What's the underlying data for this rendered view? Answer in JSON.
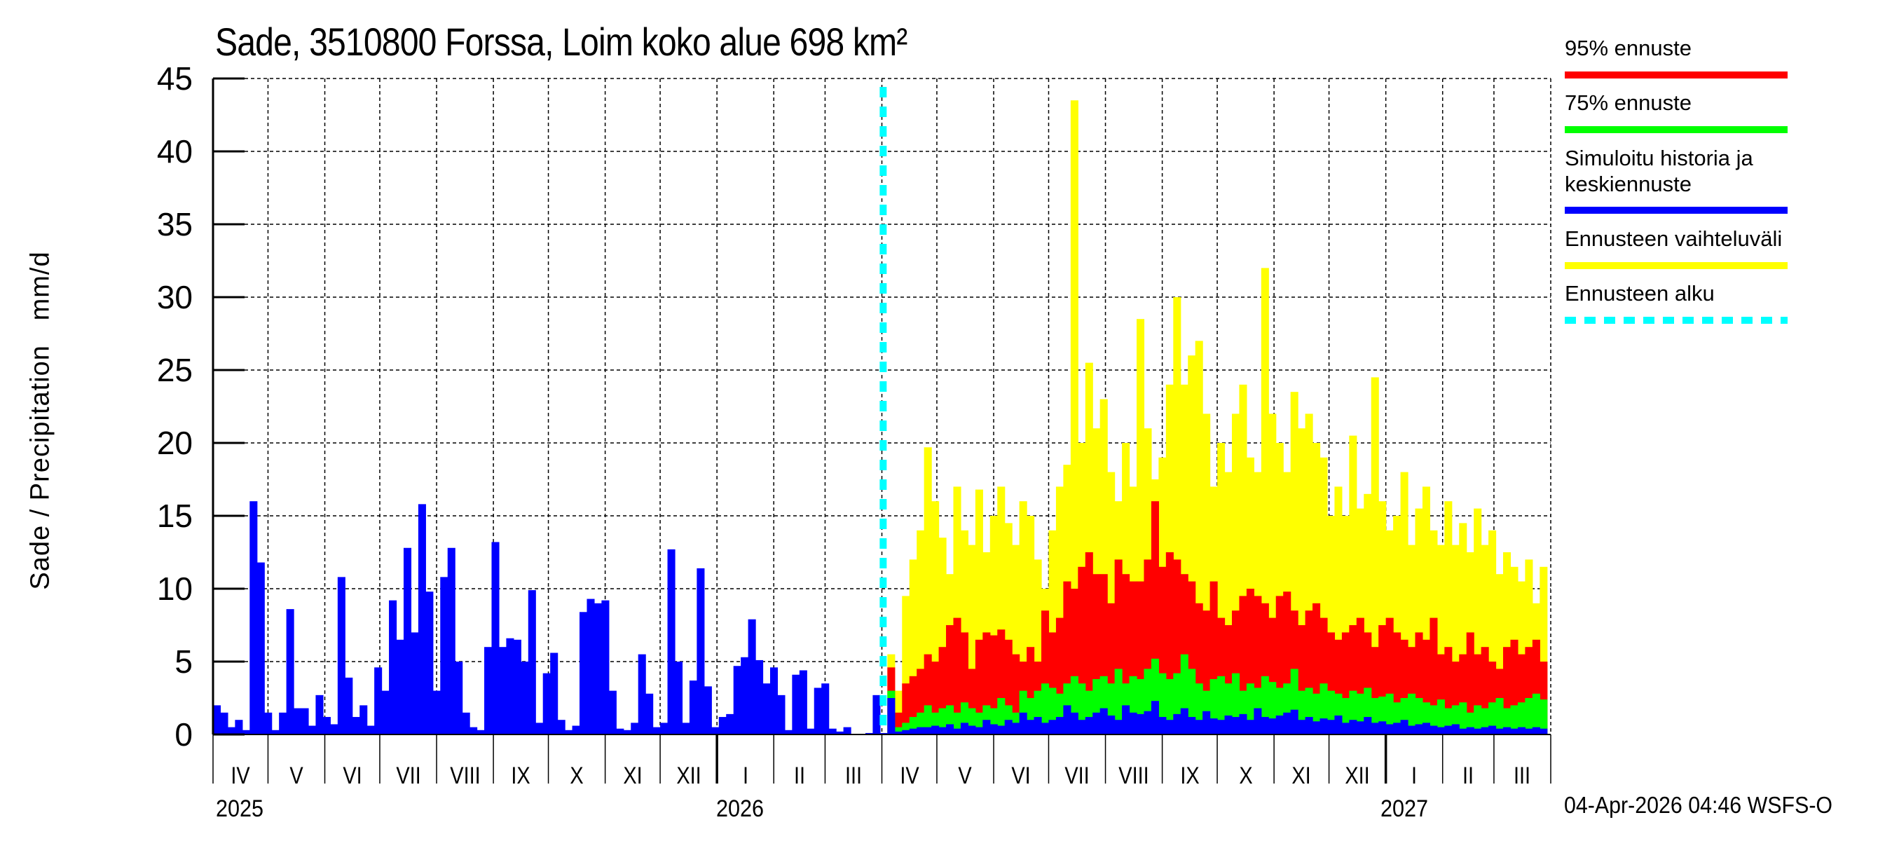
{
  "title": "Sade, 3510800 Forssa, Loim koko alue 698 km²",
  "timestamp": "04-Apr-2026 04:46 WSFS-O",
  "chart_data": {
    "type": "bar",
    "title": "Sade, 3510800 Forssa, Loim koko alue 698 km²",
    "xlabel": "",
    "ylabel": "Sade / Precipitation   mm/d",
    "ylim": [
      0,
      45
    ],
    "yticks": [
      0,
      5,
      10,
      15,
      20,
      25,
      30,
      35,
      40,
      45
    ],
    "grid": true,
    "legend_position": "right",
    "x_range": [
      "2025-04-01",
      "2027-03-31"
    ],
    "forecast_start": "2026-04-04",
    "month_labels": [
      "IV",
      "V",
      "VI",
      "VII",
      "VIII",
      "IX",
      "X",
      "XI",
      "XII",
      "I",
      "II",
      "III",
      "IV",
      "V",
      "VI",
      "VII",
      "VIII",
      "IX",
      "X",
      "XI",
      "XII",
      "I",
      "II",
      "III"
    ],
    "year_labels": [
      {
        "label": "2025",
        "month_index": 0
      },
      {
        "label": "2026",
        "month_index": 9
      },
      {
        "label": "2027",
        "month_index": 21
      }
    ],
    "legend": [
      {
        "label": "95% ennuste",
        "color": "#ff0000",
        "style": "solid"
      },
      {
        "label": "75% ennuste",
        "color": "#00ff00",
        "style": "solid"
      },
      {
        "label": "Simuloitu historia ja\nkeskiennuste",
        "color": "#0000ff",
        "style": "solid"
      },
      {
        "label": "Ennusteen vaihteluväli",
        "color": "#ffff00",
        "style": "solid"
      },
      {
        "label": "Ennusteen alku",
        "color": "#00ffff",
        "style": "dashed"
      }
    ],
    "history": {
      "name": "Simuloitu historia",
      "color": "#0000ff",
      "start": "2025-04-01",
      "step_days": 4,
      "values": [
        2.0,
        1.5,
        0.5,
        1.0,
        0.3,
        16.0,
        11.8,
        1.5,
        0.3,
        1.5,
        8.6,
        1.8,
        1.8,
        0.6,
        2.7,
        1.2,
        0.7,
        10.8,
        3.9,
        1.2,
        2.0,
        0.6,
        4.6,
        3.0,
        9.2,
        6.5,
        12.8,
        7.0,
        15.8,
        9.8,
        3.0,
        10.8,
        12.8,
        5.0,
        1.5,
        0.5,
        0.3,
        6.0,
        13.2,
        6.0,
        6.6,
        6.5,
        5.0,
        9.9,
        0.8,
        4.2,
        5.6,
        1.0,
        0.3,
        0.6,
        8.4,
        9.3,
        9.0,
        9.2,
        3.0,
        0.4,
        0.3,
        0.8,
        5.5,
        2.8,
        0.5,
        0.8,
        12.7,
        5.0,
        0.8,
        3.7,
        11.4,
        3.3,
        0.5,
        1.2,
        1.4,
        4.7,
        5.3,
        7.9,
        5.1,
        3.5,
        4.6,
        2.7,
        0.3,
        4.1,
        4.4,
        0.4,
        3.2,
        3.5,
        0.4,
        0.2,
        0.5,
        0.0,
        0.0,
        0.1,
        2.7,
        0.1,
        0.0,
        2.6,
        2.7,
        8.5,
        1.6,
        0.3,
        1.3,
        0.8,
        0.7,
        1.0,
        2.4,
        2.2,
        0.2
      ]
    },
    "forecast": {
      "start": "2026-04-04",
      "step_days": 4,
      "series": [
        {
          "name": "Ennusteen vaihteluväli",
          "color": "#ffff00",
          "values": [
            5.5,
            3.0,
            9.5,
            12.0,
            14.0,
            19.7,
            16.0,
            13.5,
            11.0,
            17.0,
            14.0,
            13.0,
            16.8,
            12.5,
            15.0,
            17.0,
            14.5,
            13.0,
            16.0,
            15.0,
            12.0,
            10.0,
            14.0,
            17.0,
            18.5,
            43.5,
            20.0,
            25.5,
            21.0,
            23.0,
            18.0,
            16.0,
            20.0,
            17.0,
            28.5,
            21.0,
            17.5,
            19.0,
            24.0,
            30.0,
            24.0,
            26.0,
            27.0,
            22.0,
            17.0,
            20.0,
            18.0,
            22.0,
            24.0,
            19.0,
            18.0,
            32.0,
            22.0,
            20.0,
            18.0,
            23.5,
            21.0,
            22.0,
            20.0,
            19.0,
            15.0,
            17.0,
            15.0,
            20.5,
            15.5,
            16.5,
            24.5,
            16.0,
            14.0,
            15.0,
            18.0,
            13.0,
            15.5,
            17.0,
            14.0,
            13.0,
            16.0,
            13.0,
            14.5,
            12.5,
            15.5,
            13.0,
            14.0,
            11.0,
            12.5,
            11.5,
            10.5,
            12.0,
            9.0,
            11.5
          ]
        },
        {
          "name": "95% ennuste",
          "color": "#ff0000",
          "values": [
            4.6,
            1.5,
            3.5,
            4.0,
            4.5,
            5.5,
            5.0,
            6.0,
            7.5,
            8.0,
            7.0,
            4.5,
            6.5,
            7.0,
            6.8,
            7.2,
            6.5,
            5.5,
            5.0,
            6.0,
            5.0,
            8.5,
            7.0,
            8.0,
            10.5,
            10.0,
            11.5,
            12.5,
            11.0,
            11.0,
            9.0,
            12.0,
            11.0,
            10.5,
            10.5,
            12.0,
            16.0,
            11.5,
            12.5,
            12.0,
            11.0,
            10.5,
            9.0,
            8.5,
            10.5,
            8.0,
            7.5,
            8.5,
            9.5,
            10.0,
            9.5,
            9.0,
            8.0,
            9.5,
            9.8,
            8.5,
            7.5,
            8.5,
            9.0,
            8.0,
            7.0,
            6.5,
            7.0,
            7.5,
            8.0,
            7.0,
            6.0,
            7.5,
            8.0,
            7.0,
            6.5,
            6.0,
            7.0,
            6.5,
            8.0,
            5.5,
            6.0,
            5.0,
            5.5,
            7.0,
            5.5,
            6.0,
            5.0,
            4.5,
            6.0,
            6.5,
            5.5,
            6.0,
            6.5,
            5.0
          ]
        },
        {
          "name": "75% ennuste",
          "color": "#00ff00",
          "values": [
            3.0,
            0.5,
            0.8,
            1.2,
            1.5,
            2.0,
            1.5,
            1.8,
            2.0,
            1.5,
            2.2,
            1.8,
            1.5,
            2.0,
            1.8,
            2.5,
            2.0,
            1.5,
            3.0,
            2.5,
            3.0,
            3.5,
            3.2,
            2.8,
            3.5,
            4.0,
            3.5,
            3.0,
            3.8,
            4.0,
            3.5,
            4.5,
            3.5,
            4.0,
            3.8,
            4.5,
            5.2,
            4.2,
            3.8,
            4.2,
            5.5,
            4.5,
            3.5,
            3.0,
            3.8,
            4.0,
            3.5,
            4.2,
            3.0,
            3.5,
            3.2,
            4.0,
            3.6,
            3.2,
            3.5,
            4.5,
            3.0,
            3.2,
            2.8,
            3.5,
            3.0,
            2.8,
            2.5,
            3.0,
            2.8,
            3.2,
            2.5,
            2.6,
            2.8,
            2.2,
            2.5,
            2.8,
            2.5,
            2.2,
            2.0,
            2.4,
            1.8,
            2.0,
            2.2,
            1.5,
            2.0,
            1.8,
            2.2,
            2.5,
            1.8,
            2.0,
            2.2,
            2.5,
            2.8,
            2.4
          ]
        },
        {
          "name": "keskiennuste",
          "color": "#0000ff",
          "values": [
            2.5,
            0.2,
            0.3,
            0.4,
            0.5,
            0.5,
            0.6,
            0.5,
            0.7,
            0.4,
            0.8,
            0.6,
            0.5,
            1.0,
            0.7,
            0.6,
            1.0,
            0.8,
            1.5,
            1.0,
            1.2,
            0.8,
            1.0,
            1.2,
            2.0,
            1.5,
            1.0,
            1.2,
            1.5,
            1.8,
            1.3,
            1.0,
            2.0,
            1.5,
            1.4,
            1.6,
            2.3,
            1.2,
            1.0,
            1.4,
            1.8,
            1.2,
            1.0,
            1.6,
            1.1,
            1.0,
            1.3,
            1.2,
            1.4,
            1.0,
            1.8,
            1.2,
            1.1,
            1.3,
            1.5,
            1.7,
            1.0,
            1.2,
            0.9,
            1.1,
            1.0,
            1.3,
            0.8,
            1.0,
            0.9,
            1.2,
            0.8,
            0.9,
            0.7,
            0.8,
            1.0,
            0.6,
            0.7,
            0.8,
            0.6,
            0.5,
            0.6,
            0.7,
            0.4,
            0.5,
            0.4,
            0.5,
            0.6,
            0.4,
            0.5,
            0.4,
            0.5,
            0.4,
            0.5,
            0.4
          ]
        }
      ]
    }
  },
  "legend": {
    "items": [
      {
        "label": "95% ennuste"
      },
      {
        "label": "75% ennuste"
      },
      {
        "label": "Simuloitu historia ja"
      },
      {
        "label": "keskiennuste"
      },
      {
        "label": "Ennusteen vaihteluväli"
      },
      {
        "label": "Ennusteen alku"
      }
    ]
  },
  "axis": {
    "ylabel": "Sade / Precipitation   mm/d",
    "yticks": [
      "0",
      "5",
      "10",
      "15",
      "20",
      "25",
      "30",
      "35",
      "40",
      "45"
    ],
    "months": [
      "IV",
      "V",
      "VI",
      "VII",
      "VIII",
      "IX",
      "X",
      "XI",
      "XII",
      "I",
      "II",
      "III",
      "IV",
      "V",
      "VI",
      "VII",
      "VIII",
      "IX",
      "X",
      "XI",
      "XII",
      "I",
      "II",
      "III"
    ],
    "years": [
      "2025",
      "2026",
      "2027"
    ]
  }
}
